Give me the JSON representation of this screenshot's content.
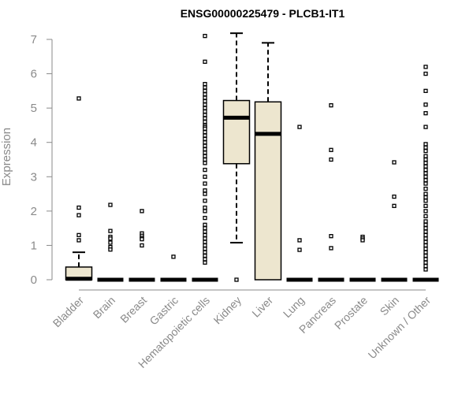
{
  "chart_data": {
    "type": "box",
    "title": "ENSG00000225479 - PLCB1-IT1",
    "xlabel": "",
    "ylabel": "Expression",
    "ylim": [
      0,
      7
    ],
    "yticks": [
      0,
      1,
      2,
      3,
      4,
      5,
      6,
      7
    ],
    "grid": false,
    "colors": {
      "box_fill": "#ede6cf",
      "stroke": "#000000",
      "axis_text": "#8a8a8a",
      "title": "#000000"
    },
    "categories": [
      "Bladder",
      "Brain",
      "Breast",
      "Gastric",
      "Hematopoietic cells",
      "Kidney",
      "Liver",
      "Lung",
      "Pancreas",
      "Prostate",
      "Skin",
      "Unknown / Other"
    ],
    "boxes": [
      {
        "name": "Bladder",
        "q1": 0,
        "median": 0.03,
        "q3": 0.37,
        "whisker_low": 0,
        "whisker_high": 0.8,
        "outliers": [
          5.28,
          2.1,
          1.88,
          1.3,
          1.15
        ]
      },
      {
        "name": "Brain",
        "q1": 0,
        "median": 0,
        "q3": 0,
        "whisker_low": 0,
        "whisker_high": 0,
        "outliers": [
          2.18,
          1.42,
          1.25,
          1.2,
          1.08,
          0.95,
          0.88
        ]
      },
      {
        "name": "Breast",
        "q1": 0,
        "median": 0,
        "q3": 0,
        "whisker_low": 0,
        "whisker_high": 0,
        "outliers": [
          2.0,
          1.35,
          1.28,
          1.22,
          1.18,
          1.0
        ]
      },
      {
        "name": "Gastric",
        "q1": 0,
        "median": 0,
        "q3": 0,
        "whisker_low": 0,
        "whisker_high": 0,
        "outliers": [
          0.67
        ]
      },
      {
        "name": "Hematopoietic cells",
        "q1": 0,
        "median": 0,
        "q3": 0,
        "whisker_low": 0,
        "whisker_high": 0,
        "outliers": [
          7.1,
          6.35,
          5.7,
          5.6,
          5.5,
          5.4,
          5.3,
          5.2,
          5.1,
          5.0,
          4.9,
          4.8,
          4.7,
          4.6,
          4.5,
          4.45,
          4.4,
          4.3,
          4.2,
          4.1,
          4.0,
          3.9,
          3.8,
          3.7,
          3.6,
          3.5,
          3.4,
          3.2,
          3.0,
          2.8,
          2.6,
          2.5,
          2.3,
          2.1,
          2.0,
          1.8,
          1.6,
          1.5,
          1.4,
          1.3,
          1.2,
          1.1,
          1.0,
          0.9,
          0.8,
          0.7,
          0.6,
          0.5
        ]
      },
      {
        "name": "Kidney",
        "q1": 3.38,
        "median": 4.72,
        "q3": 5.22,
        "whisker_low": 1.08,
        "whisker_high": 7.18,
        "outliers": [
          0
        ]
      },
      {
        "name": "Liver",
        "q1": 0,
        "median": 4.25,
        "q3": 5.18,
        "whisker_low": 0,
        "whisker_high": 6.9,
        "outliers": []
      },
      {
        "name": "Lung",
        "q1": 0,
        "median": 0,
        "q3": 0,
        "whisker_low": 0,
        "whisker_high": 0,
        "outliers": [
          4.45,
          1.15,
          0.87
        ]
      },
      {
        "name": "Pancreas",
        "q1": 0,
        "median": 0,
        "q3": 0,
        "whisker_low": 0,
        "whisker_high": 0,
        "outliers": [
          5.08,
          3.78,
          3.5,
          1.27,
          0.92
        ]
      },
      {
        "name": "Prostate",
        "q1": 0,
        "median": 0,
        "q3": 0,
        "whisker_low": 0,
        "whisker_high": 0,
        "outliers": [
          1.25,
          1.2,
          1.15
        ]
      },
      {
        "name": "Skin",
        "q1": 0,
        "median": 0,
        "q3": 0,
        "whisker_low": 0,
        "whisker_high": 0,
        "outliers": [
          3.42,
          2.42,
          2.15
        ]
      },
      {
        "name": "Unknown / Other",
        "q1": 0,
        "median": 0,
        "q3": 0,
        "whisker_low": 0,
        "whisker_high": 0,
        "outliers": [
          6.2,
          6.0,
          5.5,
          5.1,
          4.85,
          4.45,
          3.95,
          3.85,
          3.75,
          3.6,
          3.5,
          3.4,
          3.3,
          3.2,
          3.1,
          3.0,
          2.9,
          2.8,
          2.65,
          2.5,
          2.4,
          2.3,
          2.15,
          2.0,
          1.85,
          1.7,
          1.6,
          1.5,
          1.4,
          1.3,
          1.2,
          1.1,
          1.0,
          0.9,
          0.8,
          0.7,
          0.6,
          0.5,
          0.4,
          0.3
        ]
      }
    ]
  }
}
